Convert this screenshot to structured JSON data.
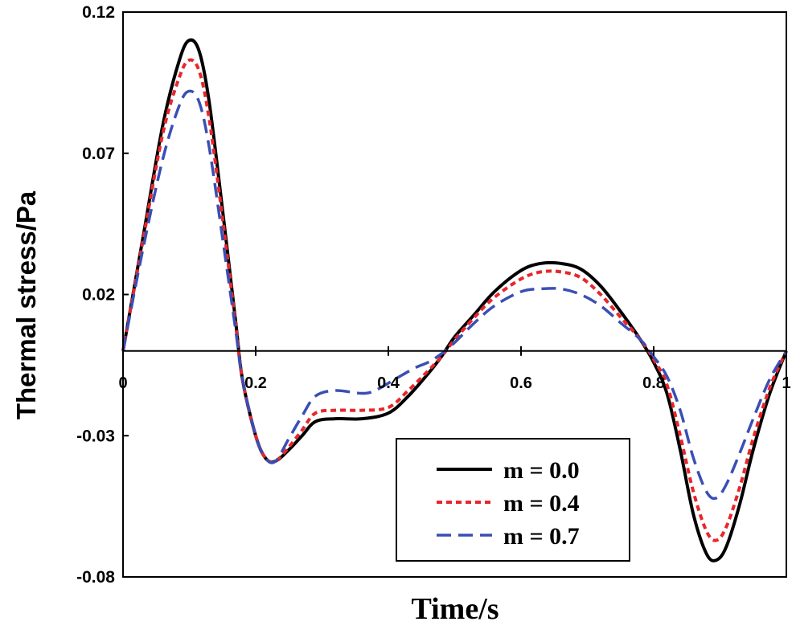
{
  "chart_data": {
    "type": "line",
    "title": "",
    "xlabel": "Time/s",
    "ylabel": "Thermal stress/Pa",
    "xlim": [
      0,
      1
    ],
    "ylim": [
      -0.08,
      0.12
    ],
    "x_ticks": [
      "0",
      "0.2",
      "0.4",
      "0.6",
      "0.8",
      "1"
    ],
    "y_ticks": [
      "0.12",
      "0.07",
      "0.02",
      "-0.03",
      "-0.08"
    ],
    "x_tick_values": [
      0,
      0.2,
      0.4,
      0.6,
      0.8,
      1
    ],
    "y_tick_values": [
      0.12,
      0.07,
      0.02,
      -0.03,
      -0.08
    ],
    "grid": false,
    "legend_position": "bottom-right",
    "series": [
      {
        "name": "m = 0.0",
        "color": "#000000",
        "style": "solid",
        "points": [
          [
            0,
            0
          ],
          [
            0.03,
            0.04
          ],
          [
            0.06,
            0.08
          ],
          [
            0.085,
            0.103
          ],
          [
            0.1,
            0.11
          ],
          [
            0.115,
            0.106
          ],
          [
            0.13,
            0.088
          ],
          [
            0.15,
            0.05
          ],
          [
            0.17,
            0.01
          ],
          [
            0.18,
            -0.01
          ],
          [
            0.2,
            -0.03
          ],
          [
            0.215,
            -0.038
          ],
          [
            0.23,
            -0.039
          ],
          [
            0.25,
            -0.035
          ],
          [
            0.27,
            -0.03
          ],
          [
            0.29,
            -0.025
          ],
          [
            0.32,
            -0.024
          ],
          [
            0.36,
            -0.024
          ],
          [
            0.4,
            -0.022
          ],
          [
            0.43,
            -0.016
          ],
          [
            0.46,
            -0.008
          ],
          [
            0.48,
            -0.002
          ],
          [
            0.5,
            0.005
          ],
          [
            0.53,
            0.013
          ],
          [
            0.56,
            0.021
          ],
          [
            0.6,
            0.0285
          ],
          [
            0.63,
            0.031
          ],
          [
            0.66,
            0.031
          ],
          [
            0.69,
            0.029
          ],
          [
            0.72,
            0.023
          ],
          [
            0.75,
            0.014
          ],
          [
            0.78,
            0.004
          ],
          [
            0.8,
            -0.004
          ],
          [
            0.82,
            -0.015
          ],
          [
            0.84,
            -0.035
          ],
          [
            0.86,
            -0.058
          ],
          [
            0.88,
            -0.072
          ],
          [
            0.895,
            -0.074
          ],
          [
            0.91,
            -0.069
          ],
          [
            0.93,
            -0.054
          ],
          [
            0.95,
            -0.035
          ],
          [
            0.975,
            -0.015
          ],
          [
            1,
            0
          ]
        ]
      },
      {
        "name": "m = 0.4",
        "color": "#e8262b",
        "style": "dotted",
        "points": [
          [
            0,
            0
          ],
          [
            0.03,
            0.039
          ],
          [
            0.06,
            0.077
          ],
          [
            0.085,
            0.097
          ],
          [
            0.1,
            0.103
          ],
          [
            0.115,
            0.099
          ],
          [
            0.13,
            0.082
          ],
          [
            0.15,
            0.047
          ],
          [
            0.17,
            0.009
          ],
          [
            0.18,
            -0.01
          ],
          [
            0.2,
            -0.03
          ],
          [
            0.215,
            -0.038
          ],
          [
            0.23,
            -0.039
          ],
          [
            0.25,
            -0.034
          ],
          [
            0.27,
            -0.028
          ],
          [
            0.29,
            -0.022
          ],
          [
            0.32,
            -0.021
          ],
          [
            0.36,
            -0.021
          ],
          [
            0.4,
            -0.02
          ],
          [
            0.43,
            -0.014
          ],
          [
            0.46,
            -0.007
          ],
          [
            0.48,
            -0.002
          ],
          [
            0.5,
            0.004
          ],
          [
            0.53,
            0.012
          ],
          [
            0.56,
            0.019
          ],
          [
            0.6,
            0.0255
          ],
          [
            0.63,
            0.028
          ],
          [
            0.66,
            0.028
          ],
          [
            0.69,
            0.026
          ],
          [
            0.72,
            0.02
          ],
          [
            0.75,
            0.012
          ],
          [
            0.78,
            0.004
          ],
          [
            0.8,
            -0.003
          ],
          [
            0.82,
            -0.012
          ],
          [
            0.84,
            -0.03
          ],
          [
            0.86,
            -0.05
          ],
          [
            0.88,
            -0.064
          ],
          [
            0.895,
            -0.067
          ],
          [
            0.91,
            -0.062
          ],
          [
            0.93,
            -0.048
          ],
          [
            0.95,
            -0.031
          ],
          [
            0.975,
            -0.013
          ],
          [
            1,
            0
          ]
        ]
      },
      {
        "name": "m = 0.7",
        "color": "#3a4fb4",
        "style": "dashed",
        "points": [
          [
            0,
            0
          ],
          [
            0.03,
            0.036
          ],
          [
            0.06,
            0.068
          ],
          [
            0.085,
            0.087
          ],
          [
            0.1,
            0.092
          ],
          [
            0.115,
            0.088
          ],
          [
            0.13,
            0.072
          ],
          [
            0.15,
            0.04
          ],
          [
            0.17,
            0.007
          ],
          [
            0.18,
            -0.01
          ],
          [
            0.2,
            -0.03
          ],
          [
            0.215,
            -0.038
          ],
          [
            0.23,
            -0.039
          ],
          [
            0.25,
            -0.031
          ],
          [
            0.27,
            -0.023
          ],
          [
            0.29,
            -0.016
          ],
          [
            0.32,
            -0.014
          ],
          [
            0.36,
            -0.015
          ],
          [
            0.38,
            -0.014
          ],
          [
            0.41,
            -0.01
          ],
          [
            0.44,
            -0.006
          ],
          [
            0.46,
            -0.004
          ],
          [
            0.48,
            -0.001
          ],
          [
            0.5,
            0.003
          ],
          [
            0.53,
            0.01
          ],
          [
            0.56,
            0.016
          ],
          [
            0.6,
            0.021
          ],
          [
            0.63,
            0.022
          ],
          [
            0.66,
            0.022
          ],
          [
            0.69,
            0.02
          ],
          [
            0.72,
            0.016
          ],
          [
            0.75,
            0.01
          ],
          [
            0.78,
            0.004
          ],
          [
            0.8,
            -0.002
          ],
          [
            0.82,
            -0.009
          ],
          [
            0.84,
            -0.021
          ],
          [
            0.86,
            -0.038
          ],
          [
            0.88,
            -0.05
          ],
          [
            0.895,
            -0.052
          ],
          [
            0.91,
            -0.047
          ],
          [
            0.93,
            -0.036
          ],
          [
            0.95,
            -0.024
          ],
          [
            0.975,
            -0.01
          ],
          [
            1,
            0
          ]
        ]
      }
    ]
  }
}
